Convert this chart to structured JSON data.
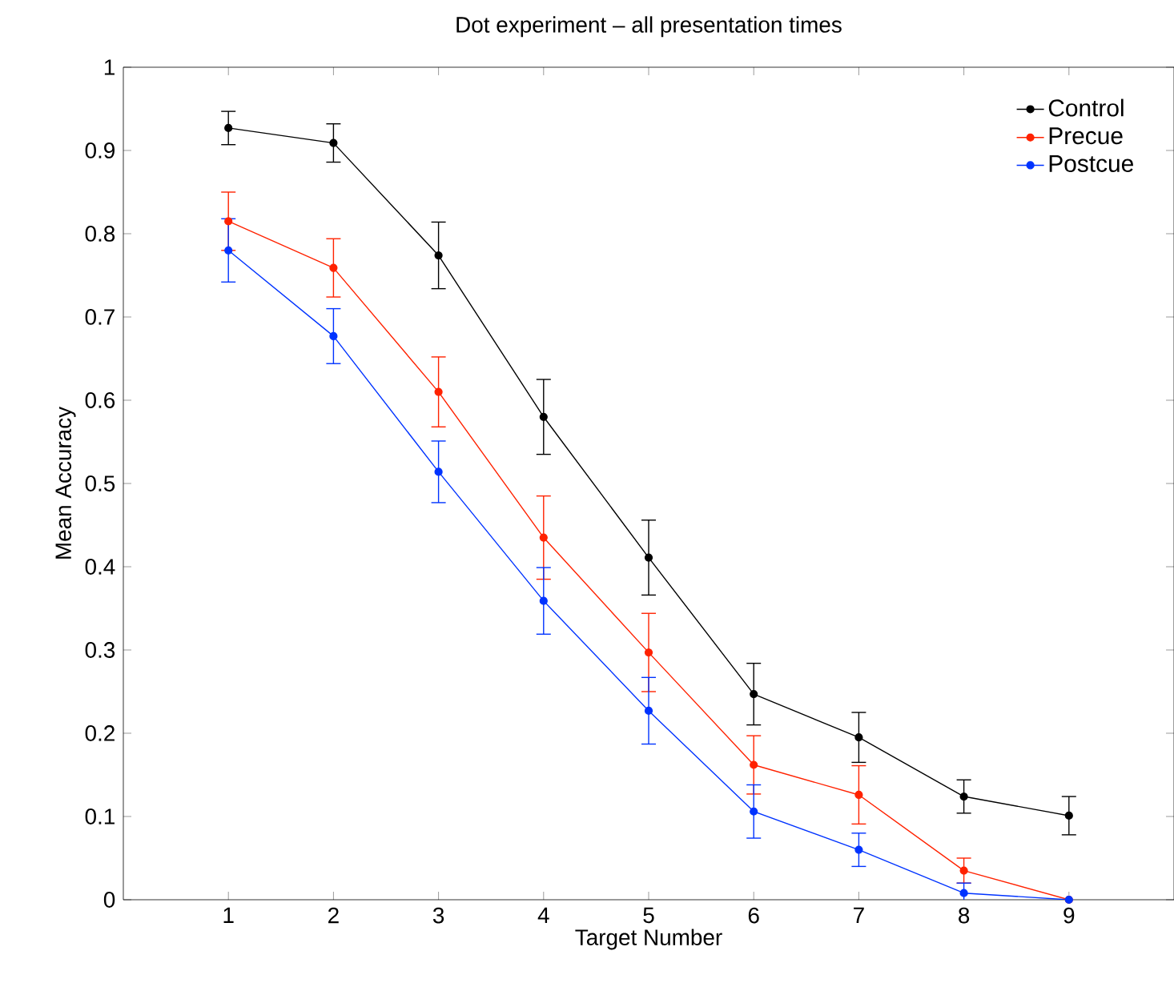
{
  "chart_data": {
    "type": "line",
    "title": "Dot experiment – all presentation times",
    "xlabel": "Target Number",
    "ylabel": "Mean Accuracy",
    "x": [
      1,
      2,
      3,
      4,
      5,
      6,
      7,
      8,
      9
    ],
    "xlim": [
      0,
      10
    ],
    "xticks": [
      1,
      2,
      3,
      4,
      5,
      6,
      7,
      8,
      9
    ],
    "ylim": [
      0,
      1
    ],
    "yticks": [
      0,
      0.1,
      0.2,
      0.3,
      0.4,
      0.5,
      0.6,
      0.7,
      0.8,
      0.9,
      1
    ],
    "marker": "circle",
    "legend": "top right",
    "series": [
      {
        "name": "Control",
        "color": "#000000",
        "values": [
          0.927,
          0.909,
          0.774,
          0.58,
          0.411,
          0.247,
          0.195,
          0.124,
          0.101
        ],
        "errors": [
          0.02,
          0.023,
          0.04,
          0.045,
          0.045,
          0.037,
          0.03,
          0.02,
          0.023
        ]
      },
      {
        "name": "Precue",
        "color": "#ff2200",
        "values": [
          0.815,
          0.759,
          0.61,
          0.435,
          0.297,
          0.162,
          0.126,
          0.035,
          0.0
        ],
        "errors": [
          0.035,
          0.035,
          0.042,
          0.05,
          0.047,
          0.035,
          0.035,
          0.015,
          null
        ]
      },
      {
        "name": "Postcue",
        "color": "#0033ff",
        "values": [
          0.78,
          0.677,
          0.514,
          0.359,
          0.227,
          0.106,
          0.06,
          0.008,
          0.0
        ],
        "errors": [
          0.038,
          0.033,
          0.037,
          0.04,
          0.04,
          0.032,
          0.02,
          0.012,
          null
        ]
      }
    ]
  }
}
